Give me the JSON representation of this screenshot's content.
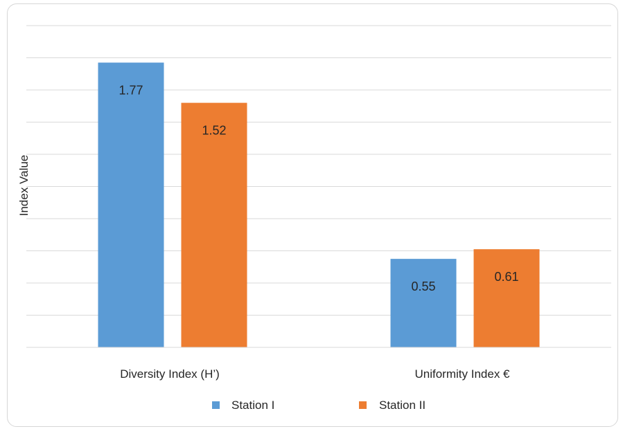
{
  "chart_data": {
    "type": "bar",
    "title": "",
    "xlabel": "",
    "ylabel": "Index Value",
    "categories": [
      "Diversity Index (H’)",
      "Uniformity Index €"
    ],
    "series": [
      {
        "name": "Station I",
        "values": [
          1.77,
          0.55
        ],
        "color": "#5B9BD5"
      },
      {
        "name": "Station II",
        "values": [
          1.52,
          0.61
        ],
        "color": "#ED7D31"
      }
    ],
    "ylim": [
      0,
      2.0
    ],
    "grid": true,
    "axis_tick_labels_shown": false,
    "legend_position": "bottom",
    "data_labels": "inside-end"
  }
}
